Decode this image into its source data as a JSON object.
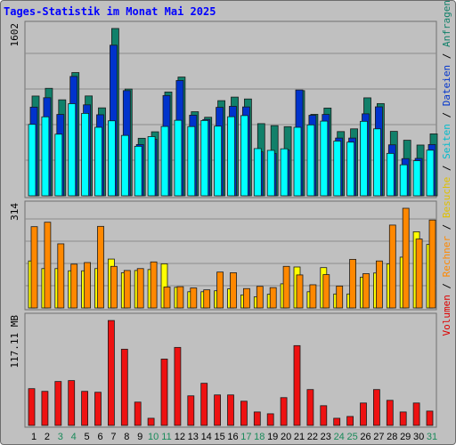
{
  "title": "Tages-Statistik im Monat Mai 2025",
  "right_legend": [
    {
      "text": "Volumen",
      "color": "#dd0000"
    },
    {
      "text": " / ",
      "color": "#000000"
    },
    {
      "text": "Rechner",
      "color": "#ff8800"
    },
    {
      "text": " / ",
      "color": "#000000"
    },
    {
      "text": "Besuche",
      "color": "#e0c000"
    },
    {
      "text": " / ",
      "color": "#000000"
    },
    {
      "text": "Seiten",
      "color": "#00bbcc"
    },
    {
      "text": " / ",
      "color": "#000000"
    },
    {
      "text": "Dateien",
      "color": "#0033cc"
    },
    {
      "text": " / ",
      "color": "#000000"
    },
    {
      "text": "Anfragen",
      "color": "#11806a"
    }
  ],
  "chart_data": [
    {
      "type": "bar",
      "ymax_label": "1602",
      "ylim": [
        0,
        1602
      ],
      "grid": true,
      "categories": [
        "1",
        "2",
        "3",
        "4",
        "5",
        "6",
        "7",
        "8",
        "9",
        "10",
        "11",
        "12",
        "13",
        "14",
        "15",
        "16",
        "17",
        "18",
        "19",
        "20",
        "21",
        "22",
        "23",
        "24",
        "25",
        "26",
        "27",
        "28",
        "29",
        "30",
        "31"
      ],
      "series": [
        {
          "name": "Anfragen",
          "color": "#11806a",
          "values": [
            955,
            1029,
            919,
            1180,
            956,
            842,
            1602,
            1022,
            551,
            613,
            994,
            1137,
            805,
            752,
            911,
            945,
            927,
            691,
            672,
            662,
            1007,
            780,
            840,
            615,
            641,
            938,
            883,
            617,
            532,
            486,
            593
          ]
        },
        {
          "name": "Dateien",
          "color": "#0033cc",
          "values": [
            849,
            939,
            779,
            1143,
            871,
            776,
            1442,
            1007,
            491,
            541,
            960,
            1104,
            772,
            730,
            847,
            857,
            851,
            421,
            406,
            438,
            1013,
            771,
            779,
            553,
            553,
            785,
            852,
            488,
            356,
            358,
            491
          ]
        },
        {
          "name": "Seiten",
          "color": "#00ffff",
          "values": [
            684,
            756,
            590,
            882,
            789,
            656,
            718,
            578,
            474,
            567,
            664,
            723,
            663,
            721,
            667,
            757,
            768,
            452,
            435,
            450,
            656,
            679,
            715,
            524,
            514,
            713,
            641,
            406,
            297,
            336,
            437
          ]
        }
      ]
    },
    {
      "type": "bar",
      "ymax_label": "314",
      "ylim": [
        0,
        314
      ],
      "grid": true,
      "categories": [
        "1",
        "2",
        "3",
        "4",
        "5",
        "6",
        "7",
        "8",
        "9",
        "10",
        "11",
        "12",
        "13",
        "14",
        "15",
        "16",
        "17",
        "18",
        "19",
        "20",
        "21",
        "22",
        "23",
        "24",
        "25",
        "26",
        "27",
        "28",
        "29",
        "30",
        "31"
      ],
      "series": [
        {
          "name": "Besuche",
          "color": "#ffff00",
          "values": [
            148,
            124,
            124,
            117,
            117,
            124,
            154,
            111,
            118,
            121,
            139,
            65,
            51,
            51,
            54,
            60,
            41,
            35,
            43,
            76,
            129,
            51,
            127,
            44,
            44,
            97,
            110,
            139,
            160,
            240,
            200
          ]
        },
        {
          "name": "Rechner",
          "color": "#ff8800",
          "values": [
            256,
            270,
            202,
            138,
            143,
            257,
            131,
            118,
            124,
            145,
            66,
            67,
            63,
            57,
            113,
            111,
            61,
            68,
            64,
            131,
            104,
            73,
            105,
            69,
            153,
            108,
            148,
            261,
            314,
            217,
            277
          ]
        }
      ]
    },
    {
      "type": "bar",
      "ymax_label": "117.11 MB",
      "ylim": [
        0,
        117.11
      ],
      "grid": false,
      "categories": [
        "1",
        "2",
        "3",
        "4",
        "5",
        "6",
        "7",
        "8",
        "9",
        "10",
        "11",
        "12",
        "13",
        "14",
        "15",
        "16",
        "17",
        "18",
        "19",
        "20",
        "21",
        "22",
        "23",
        "24",
        "25",
        "26",
        "27",
        "28",
        "29",
        "30",
        "31"
      ],
      "series": [
        {
          "name": "Volumen",
          "color": "#ee1111",
          "values": [
            41,
            38,
            49,
            50,
            38,
            37,
            117,
            85,
            26,
            8,
            74,
            87,
            33,
            47,
            34,
            34,
            27,
            15,
            13,
            31,
            89,
            40,
            22,
            8,
            10,
            25,
            40,
            28,
            15,
            25,
            16
          ]
        }
      ]
    }
  ],
  "x_labels": [
    {
      "text": "1",
      "color": "#000000"
    },
    {
      "text": "2",
      "color": "#000000"
    },
    {
      "text": "3",
      "color": "#1a8a5a"
    },
    {
      "text": "4",
      "color": "#1a8a5a"
    },
    {
      "text": "5",
      "color": "#000000"
    },
    {
      "text": "6",
      "color": "#000000"
    },
    {
      "text": "7",
      "color": "#000000"
    },
    {
      "text": "8",
      "color": "#000000"
    },
    {
      "text": "9",
      "color": "#000000"
    },
    {
      "text": "10",
      "color": "#1a8a5a"
    },
    {
      "text": "11",
      "color": "#1a8a5a"
    },
    {
      "text": "12",
      "color": "#000000"
    },
    {
      "text": "13",
      "color": "#000000"
    },
    {
      "text": "14",
      "color": "#000000"
    },
    {
      "text": "15",
      "color": "#000000"
    },
    {
      "text": "16",
      "color": "#000000"
    },
    {
      "text": "17",
      "color": "#1a8a5a"
    },
    {
      "text": "18",
      "color": "#1a8a5a"
    },
    {
      "text": "19",
      "color": "#000000"
    },
    {
      "text": "20",
      "color": "#000000"
    },
    {
      "text": "21",
      "color": "#000000"
    },
    {
      "text": "22",
      "color": "#000000"
    },
    {
      "text": "23",
      "color": "#000000"
    },
    {
      "text": "24",
      "color": "#1a8a5a"
    },
    {
      "text": "25",
      "color": "#1a8a5a"
    },
    {
      "text": "26",
      "color": "#000000"
    },
    {
      "text": "27",
      "color": "#000000"
    },
    {
      "text": "28",
      "color": "#000000"
    },
    {
      "text": "29",
      "color": "#000000"
    },
    {
      "text": "30",
      "color": "#000000"
    },
    {
      "text": "31",
      "color": "#1a8a5a"
    }
  ]
}
